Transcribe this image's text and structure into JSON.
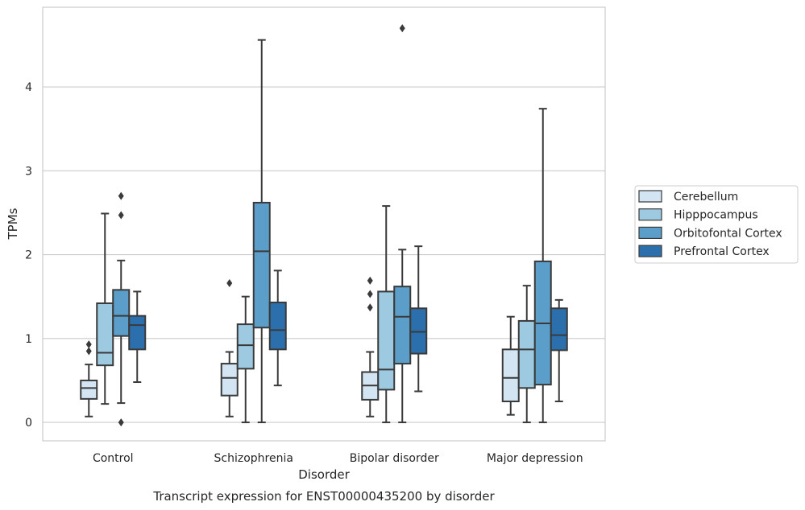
{
  "chart_data": {
    "type": "box",
    "title": "Transcript expression for ENST00000435200 by disorder",
    "xlabel": "Disorder",
    "ylabel": "TPMs",
    "ylim": [
      -0.22,
      4.95
    ],
    "yticks": [
      0,
      1,
      2,
      3,
      4
    ],
    "grid": true,
    "legend_position": "right",
    "categories": [
      "Control",
      "Schizophrenia",
      "Bipolar disorder",
      "Major depression"
    ],
    "series": [
      {
        "name": "Cerebellum",
        "color": "#d3e4f3",
        "boxes": [
          {
            "whisker_low": 0.07,
            "q1": 0.28,
            "median": 0.41,
            "q3": 0.5,
            "whisker_high": 0.69,
            "outliers": [
              0.85,
              0.93
            ]
          },
          {
            "whisker_low": 0.07,
            "q1": 0.32,
            "median": 0.53,
            "q3": 0.7,
            "whisker_high": 0.84,
            "outliers": [
              1.66
            ]
          },
          {
            "whisker_low": 0.07,
            "q1": 0.27,
            "median": 0.44,
            "q3": 0.6,
            "whisker_high": 0.84,
            "outliers": [
              1.37,
              1.53,
              1.69
            ]
          },
          {
            "whisker_low": 0.09,
            "q1": 0.25,
            "median": 0.53,
            "q3": 0.87,
            "whisker_high": 1.26,
            "outliers": []
          }
        ]
      },
      {
        "name": "Hipppocampus",
        "color": "#9dc9e1",
        "boxes": [
          {
            "whisker_low": 0.22,
            "q1": 0.68,
            "median": 0.83,
            "q3": 1.42,
            "whisker_high": 2.49,
            "outliers": []
          },
          {
            "whisker_low": 0.0,
            "q1": 0.64,
            "median": 0.92,
            "q3": 1.17,
            "whisker_high": 1.5,
            "outliers": []
          },
          {
            "whisker_low": 0.0,
            "q1": 0.39,
            "median": 0.63,
            "q3": 1.56,
            "whisker_high": 2.58,
            "outliers": []
          },
          {
            "whisker_low": 0.0,
            "q1": 0.41,
            "median": 0.87,
            "q3": 1.21,
            "whisker_high": 1.63,
            "outliers": []
          }
        ]
      },
      {
        "name": "Orbitofontal Cortex",
        "color": "#5a9ec9",
        "boxes": [
          {
            "whisker_low": 0.23,
            "q1": 1.03,
            "median": 1.27,
            "q3": 1.58,
            "whisker_high": 1.93,
            "outliers": [
              0.0,
              2.47,
              2.7
            ]
          },
          {
            "whisker_low": 0.0,
            "q1": 1.13,
            "median": 2.04,
            "q3": 2.62,
            "whisker_high": 4.56,
            "outliers": []
          },
          {
            "whisker_low": 0.0,
            "q1": 0.7,
            "median": 1.26,
            "q3": 1.62,
            "whisker_high": 2.06,
            "outliers": [
              4.7
            ]
          },
          {
            "whisker_low": 0.0,
            "q1": 0.45,
            "median": 1.18,
            "q3": 1.92,
            "whisker_high": 3.74,
            "outliers": []
          }
        ]
      },
      {
        "name": "Prefrontal Cortex",
        "color": "#2b6fad",
        "boxes": [
          {
            "whisker_low": 0.48,
            "q1": 0.87,
            "median": 1.16,
            "q3": 1.27,
            "whisker_high": 1.56,
            "outliers": []
          },
          {
            "whisker_low": 0.44,
            "q1": 0.87,
            "median": 1.1,
            "q3": 1.43,
            "whisker_high": 1.81,
            "outliers": []
          },
          {
            "whisker_low": 0.37,
            "q1": 0.82,
            "median": 1.08,
            "q3": 1.36,
            "whisker_high": 2.1,
            "outliers": []
          },
          {
            "whisker_low": 0.25,
            "q1": 0.86,
            "median": 1.04,
            "q3": 1.36,
            "whisker_high": 1.46,
            "outliers": []
          }
        ]
      }
    ]
  }
}
